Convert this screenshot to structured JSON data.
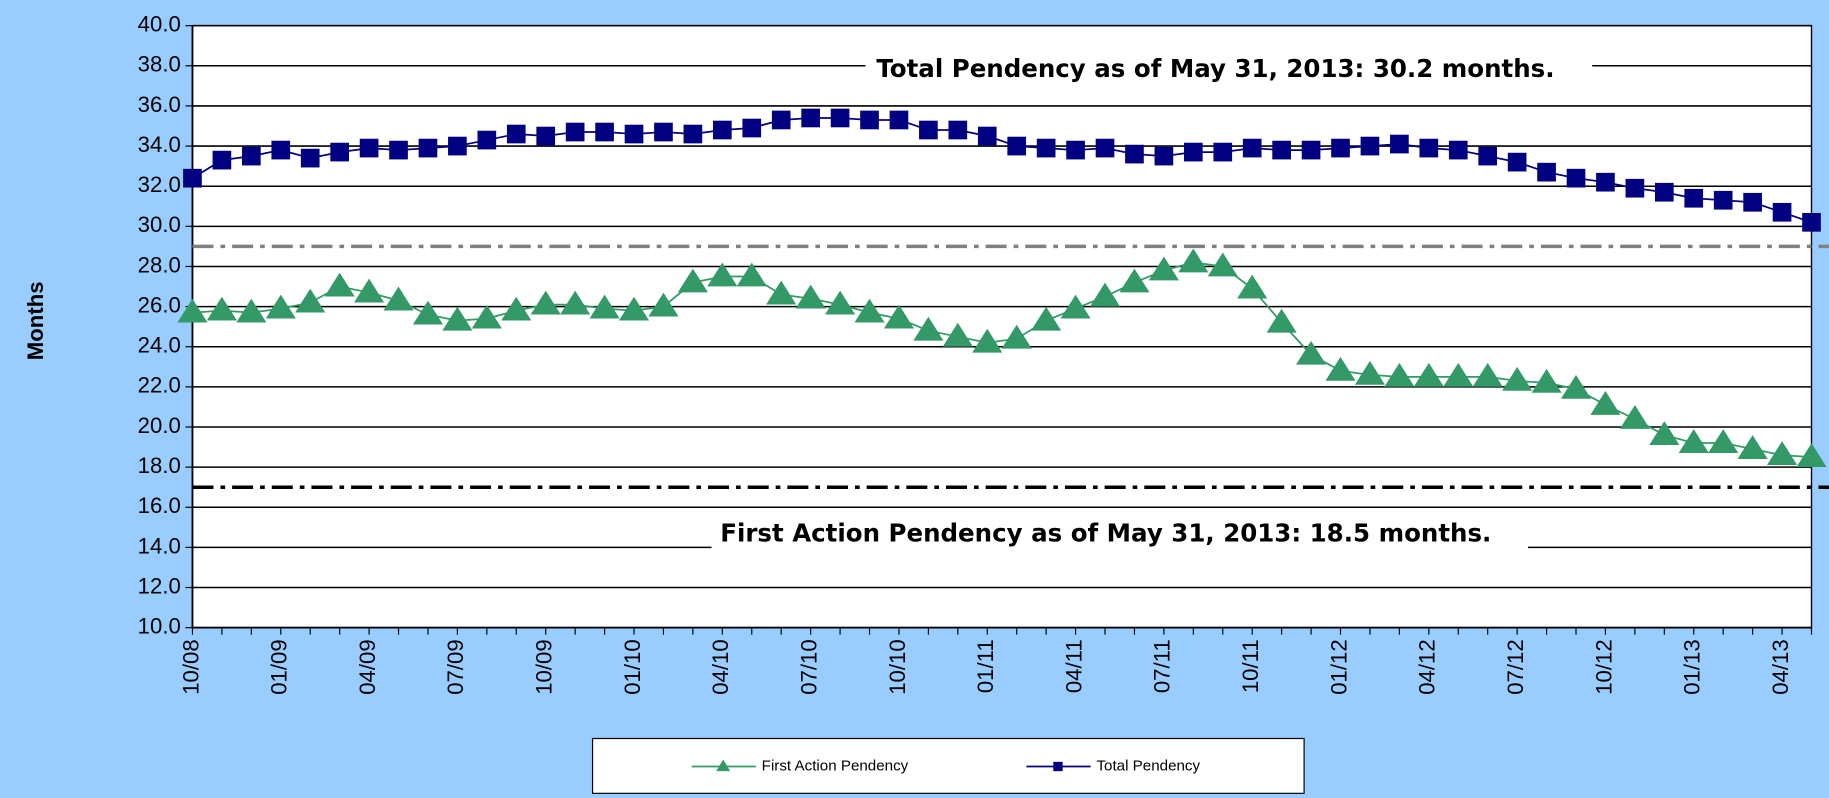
{
  "chart_data": {
    "type": "line",
    "y_label": "Months",
    "categories": [
      "10/08",
      null,
      null,
      "01/09",
      null,
      null,
      "04/09",
      null,
      null,
      "07/09",
      null,
      null,
      "10/09",
      null,
      null,
      "01/10",
      null,
      null,
      "04/10",
      null,
      null,
      "07/10",
      null,
      null,
      "10/10",
      null,
      null,
      "01/11",
      null,
      null,
      "04/11",
      null,
      null,
      "07/11",
      null,
      null,
      "10/11",
      null,
      null,
      "01/12",
      null,
      null,
      "04/12",
      null,
      null,
      "07/12",
      null,
      null,
      "10/12",
      null,
      null,
      "01/13",
      null,
      null,
      "04/13",
      null
    ],
    "series": [
      {
        "name": "First Action Pendency",
        "color": "#339966",
        "marker": "triangle",
        "values": [
          25.7,
          25.8,
          25.7,
          25.9,
          26.2,
          27.0,
          26.7,
          26.3,
          25.6,
          25.3,
          25.4,
          25.8,
          26.1,
          26.1,
          25.9,
          25.8,
          26.0,
          27.2,
          27.5,
          27.5,
          26.6,
          26.4,
          26.1,
          25.7,
          25.4,
          24.8,
          24.5,
          24.2,
          24.4,
          25.3,
          25.9,
          26.5,
          27.2,
          27.8,
          28.2,
          28.0,
          26.9,
          25.2,
          23.6,
          22.8,
          22.6,
          22.5,
          22.5,
          22.5,
          22.5,
          22.3,
          22.2,
          21.9,
          21.1,
          20.4,
          19.6,
          19.2,
          19.2,
          18.9,
          18.6,
          18.5
        ]
      },
      {
        "name": "Total Pendency",
        "color": "#000080",
        "marker": "square",
        "values": [
          32.4,
          33.3,
          33.5,
          33.8,
          33.4,
          33.7,
          33.9,
          33.8,
          33.9,
          34.0,
          34.3,
          34.6,
          34.5,
          34.7,
          34.7,
          34.6,
          34.7,
          34.6,
          34.8,
          34.9,
          35.3,
          35.4,
          35.4,
          35.3,
          35.3,
          34.8,
          34.8,
          34.5,
          34.0,
          33.9,
          33.8,
          33.9,
          33.6,
          33.5,
          33.7,
          33.7,
          33.9,
          33.8,
          33.8,
          33.9,
          34.0,
          34.1,
          33.9,
          33.8,
          33.5,
          33.2,
          32.7,
          32.4,
          32.2,
          31.9,
          31.7,
          31.4,
          31.3,
          31.2,
          30.7,
          30.2
        ]
      }
    ],
    "ylim": [
      10,
      40
    ],
    "yticks": [
      {
        "value": 10,
        "label": "10.0"
      },
      {
        "value": 12,
        "label": "12.0"
      },
      {
        "value": 14,
        "label": "14.0"
      },
      {
        "value": 16,
        "label": "16.0"
      },
      {
        "value": 18,
        "label": "18.0"
      },
      {
        "value": 20,
        "label": "20.0"
      },
      {
        "value": 22,
        "label": "22.0"
      },
      {
        "value": 24,
        "label": "24.0"
      },
      {
        "value": 26,
        "label": "26.0"
      },
      {
        "value": 28,
        "label": "28.0"
      },
      {
        "value": 30,
        "label": "30.0"
      },
      {
        "value": 32,
        "label": "32.0"
      },
      {
        "value": 34,
        "label": "34.0"
      },
      {
        "value": 36,
        "label": "36.0"
      },
      {
        "value": 38,
        "label": "38.0"
      },
      {
        "value": 40,
        "label": "40.0"
      }
    ],
    "grid": true,
    "reference_lines": [
      {
        "value": 29,
        "color": "#808080"
      },
      {
        "value": 17,
        "color": "#000000"
      }
    ],
    "annotations": [
      "Total Pendency as of May 31, 2013: 30.2 months.",
      "First Action Pendency as of May 31, 2013: 18.5 months."
    ],
    "legend": "bottom"
  }
}
